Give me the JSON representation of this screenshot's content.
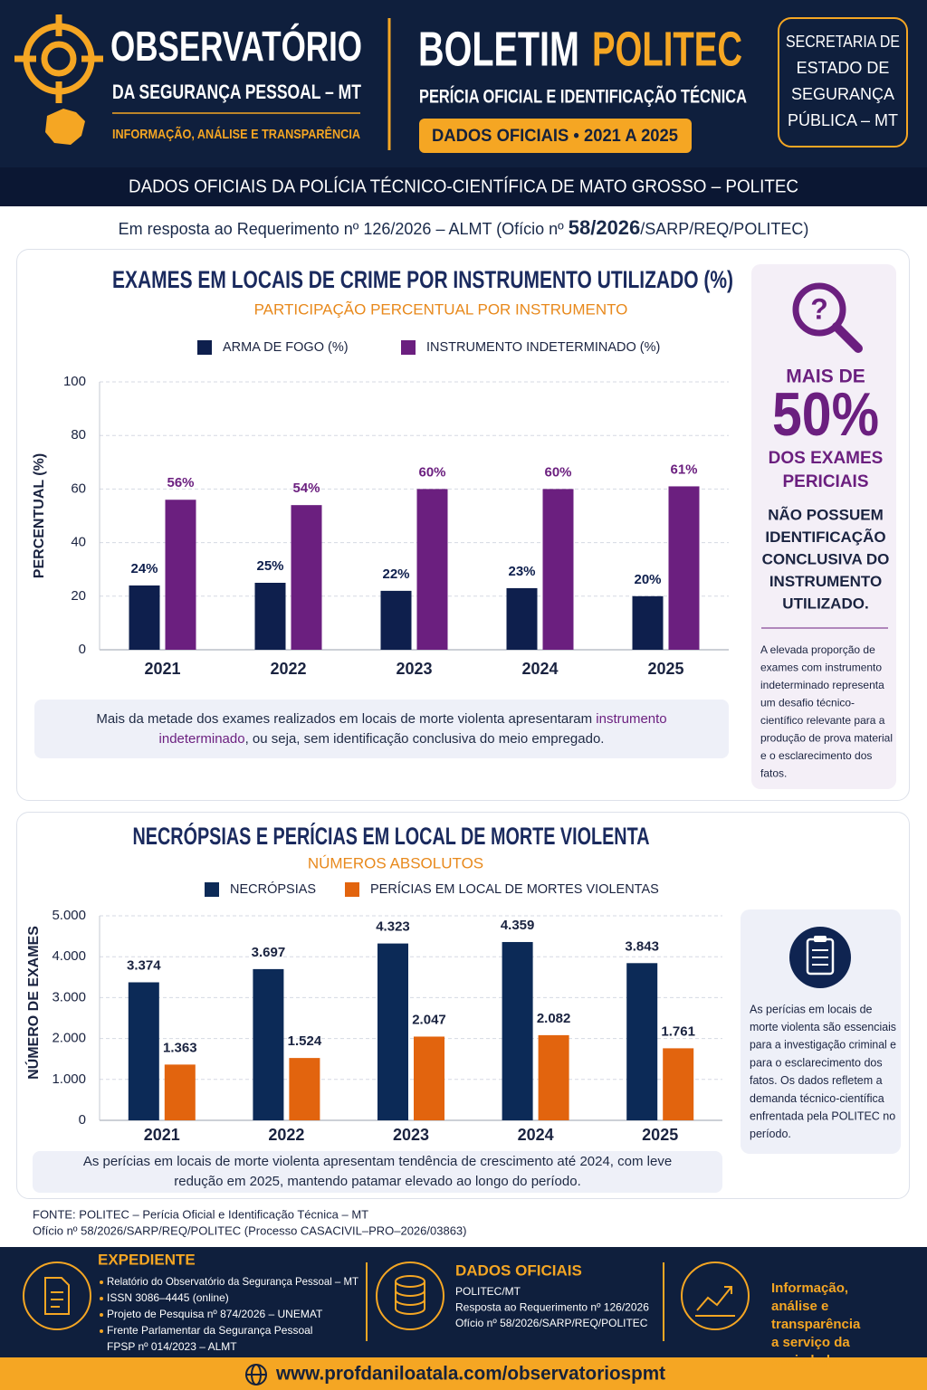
{
  "header": {
    "logo_title": "OBSERVATÓRIO",
    "logo_subtitle": "DA SEGURANÇA PESSOAL – MT",
    "tagline": "INFORMAÇÃO, ANÁLISE E TRANSPARÊNCIA",
    "bulletin_word": "BOLETIM",
    "bulletin_name": "POLITEC",
    "bulletin_subtitle": "PERÍCIA OFICIAL E IDENTIFICAÇÃO TÉCNICA",
    "badge": "DADOS OFICIAIS • 2021 A 2025",
    "secretariat": [
      "SECRETARIA DE",
      "ESTADO DE",
      "SEGURANÇA",
      "PÚBLICA – MT"
    ]
  },
  "banner": "DADOS OFICIAIS DA POLÍCIA TÉCNICO-CIENTÍFICA DE MATO GROSSO – POLITEC",
  "request": {
    "before": "Em resposta ao Requerimento nº 126/2026 – ALMT (Ofício nº ",
    "emphasis": "58/2026",
    "after": "/SARP/REQ/POLITEC)"
  },
  "chart_data": [
    {
      "type": "bar",
      "title": "EXAMES EM LOCAIS DE CRIME POR INSTRUMENTO UTILIZADO (%)",
      "subtitle": "PARTICIPAÇÃO PERCENTUAL POR INSTRUMENTO",
      "y_label": "PERCENTUAL (%)",
      "categories": [
        "2021",
        "2022",
        "2023",
        "2024",
        "2025"
      ],
      "series": [
        {
          "name": "ARMA DE FOGO (%)",
          "color": "#0e1f4d",
          "values": [
            24,
            25,
            22,
            23,
            20
          ],
          "value_labels": [
            "24%",
            "25%",
            "22%",
            "23%",
            "20%"
          ]
        },
        {
          "name": "INSTRUMENTO INDETERMINADO (%)",
          "color": "#6b1f7f",
          "values": [
            56,
            54,
            60,
            60,
            61
          ],
          "value_labels": [
            "56%",
            "54%",
            "60%",
            "60%",
            "61%"
          ]
        }
      ],
      "ylim": [
        0,
        100
      ],
      "yticks": [
        0,
        20,
        40,
        60,
        80,
        100
      ],
      "grid": true
    },
    {
      "type": "bar",
      "title": "NECRÓPSIAS E PERÍCIAS EM LOCAL DE MORTE VIOLENTA",
      "subtitle": "NÚMEROS ABSOLUTOS",
      "y_label": "NÚMERO DE EXAMES",
      "categories": [
        "2021",
        "2022",
        "2023",
        "2024",
        "2025"
      ],
      "series": [
        {
          "name": "NECRÓPSIAS",
          "color": "#0c2a57",
          "values": [
            3374,
            3697,
            4323,
            4359,
            3843
          ],
          "value_labels": [
            "3.374",
            "3.697",
            "4.323",
            "4.359",
            "3.843"
          ]
        },
        {
          "name": "PERÍCIAS EM LOCAL DE MORTES VIOLENTAS",
          "color": "#e2640e",
          "values": [
            1363,
            1524,
            2047,
            2082,
            1761
          ],
          "value_labels": [
            "1.363",
            "1.524",
            "2.047",
            "2.082",
            "1.761"
          ]
        }
      ],
      "ylim": [
        0,
        5000
      ],
      "yticks": [
        0,
        {
          "value": 1000,
          "label": "1.000"
        },
        {
          "value": 2000,
          "label": "2.000"
        },
        {
          "value": 3000,
          "label": "3.000"
        },
        {
          "value": 4000,
          "label": "4.000"
        },
        {
          "value": 5000,
          "label": "5.000"
        }
      ],
      "grid": true
    }
  ],
  "notes": [
    {
      "before": "Mais da metade dos exames realizados em locais de morte violenta apresentaram ",
      "highlight": "instrumento indeterminado",
      "after": ", ou seja, sem identificação conclusiva do meio empregado."
    },
    {
      "text": "As perícias em locais de morte violenta apresentam tendência de crescimento até 2024, com leve redução em 2025, mantendo patamar elevado ao longo do período."
    }
  ],
  "side_panels": [
    {
      "lead": "MAIS DE",
      "figure": "50%",
      "figure_caption": [
        "DOS EXAMES",
        "PERICIAIS"
      ],
      "statement": [
        "NÃO POSSUEM",
        "IDENTIFICAÇÃO",
        "CONCLUSIVA DO",
        "INSTRUMENTO",
        "UTILIZADO."
      ],
      "text": [
        "A elevada proporção de",
        "exames com instrumento",
        "indeterminado representa",
        "um desafio técnico-",
        "científico relevante para a",
        "produção de prova material",
        "e o esclarecimento dos",
        "fatos."
      ]
    },
    {
      "text": [
        "As perícias em locais de",
        "morte violenta são essenciais",
        "para a investigação criminal e",
        "para o esclarecimento dos",
        "fatos. Os dados refletem a",
        "demanda técnico-científica",
        "enfrentada pela POLITEC no",
        "período."
      ]
    }
  ],
  "source": [
    "FONTE: POLITEC – Perícia Oficial e Identificação Técnica – MT",
    "Ofício nº 58/2026/SARP/REQ/POLITEC (Processo CASACIVIL–PRO–2026/03863)"
  ],
  "footer": {
    "expediente": {
      "title": "EXPEDIENTE",
      "items": [
        "Relatório do Observatório da Segurança Pessoal – MT",
        "ISSN 3086–4445 (online)",
        "Projeto de Pesquisa nº 874/2026 – UNEMAT",
        [
          "Frente Parlamentar da Segurança Pessoal",
          "FPSP nº 014/2023 – ALMT"
        ]
      ]
    },
    "official": {
      "title": "DADOS OFICIAIS",
      "lines": [
        "POLITEC/MT",
        "Resposta ao Requerimento nº 126/2026",
        "Ofício nº 58/2026/SARP/REQ/POLITEC"
      ]
    },
    "motto": [
      "Informação,",
      "análise e",
      "transparência",
      "a serviço da",
      "sociedade."
    ],
    "url": "www.profdaniloatala.com/observatoriospmt"
  }
}
